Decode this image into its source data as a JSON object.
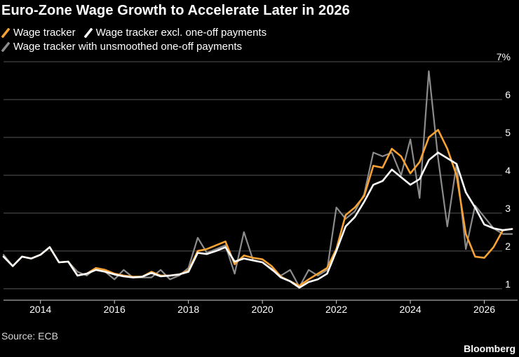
{
  "title": "Euro-Zone Wage Growth to Accelerate Later in 2026",
  "source": "Source: ECB",
  "brand": "Bloomberg",
  "chart_data": {
    "type": "line",
    "title": "Euro-Zone Wage Growth to Accelerate Later in 2026",
    "xlabel": "",
    "ylabel": "",
    "xlim": [
      2013.0,
      2026.9
    ],
    "ylim": [
      0.7,
      7.0
    ],
    "y_ticks": [
      1,
      2,
      3,
      4,
      5,
      6,
      7
    ],
    "y_tick_labels": [
      "1",
      "2",
      "3",
      "4",
      "5",
      "6",
      "7%"
    ],
    "x_ticks": [
      2014,
      2016,
      2018,
      2020,
      2022,
      2024,
      2026
    ],
    "x_tick_labels": [
      "2014",
      "2016",
      "2018",
      "2020",
      "2022",
      "2024",
      "2026"
    ],
    "grid": "horizontal",
    "legend_position": "top-left",
    "series": [
      {
        "name": "Wage tracker with unsmoothed one-off payments",
        "color": "#8c8c8c",
        "x": [
          2013.0,
          2013.25,
          2013.5,
          2013.75,
          2014.0,
          2014.25,
          2014.5,
          2014.75,
          2015.0,
          2015.25,
          2015.5,
          2015.75,
          2016.0,
          2016.25,
          2016.5,
          2016.75,
          2017.0,
          2017.25,
          2017.5,
          2017.75,
          2018.0,
          2018.25,
          2018.5,
          2018.75,
          2019.0,
          2019.25,
          2019.5,
          2019.75,
          2020.0,
          2020.25,
          2020.5,
          2020.75,
          2021.0,
          2021.25,
          2021.5,
          2021.75,
          2022.0,
          2022.25,
          2022.5,
          2022.75,
          2023.0,
          2023.25,
          2023.5,
          2023.75,
          2024.0,
          2024.25,
          2024.5,
          2024.75,
          2025.0,
          2025.25,
          2025.5,
          2025.75,
          2026.0,
          2026.25,
          2026.5,
          2026.75
        ],
        "y": [
          1.9,
          1.6,
          1.85,
          1.8,
          1.9,
          2.1,
          1.7,
          1.72,
          1.45,
          1.35,
          1.55,
          1.45,
          1.25,
          1.5,
          1.3,
          1.3,
          1.3,
          1.5,
          1.25,
          1.35,
          1.55,
          2.35,
          1.95,
          2.05,
          2.15,
          1.4,
          2.5,
          1.75,
          1.7,
          1.5,
          1.35,
          1.5,
          1.05,
          1.5,
          1.35,
          1.5,
          3.15,
          2.85,
          3.05,
          3.5,
          4.6,
          4.5,
          4.6,
          4.0,
          4.95,
          3.4,
          6.75,
          4.45,
          2.65,
          4.3,
          2.05,
          3.2,
          2.9,
          2.6,
          2.45,
          2.45
        ]
      },
      {
        "name": "Wage tracker",
        "color": "#f7a234",
        "x": [
          2013.0,
          2013.25,
          2013.5,
          2013.75,
          2014.0,
          2014.25,
          2014.5,
          2014.75,
          2015.0,
          2015.25,
          2015.5,
          2015.75,
          2016.0,
          2016.25,
          2016.5,
          2016.75,
          2017.0,
          2017.25,
          2017.5,
          2017.75,
          2018.0,
          2018.25,
          2018.5,
          2018.75,
          2019.0,
          2019.25,
          2019.5,
          2019.75,
          2020.0,
          2020.25,
          2020.5,
          2020.75,
          2021.0,
          2021.25,
          2021.5,
          2021.75,
          2022.0,
          2022.25,
          2022.5,
          2022.75,
          2023.0,
          2023.25,
          2023.5,
          2023.75,
          2024.0,
          2024.25,
          2024.5,
          2024.75,
          2025.0,
          2025.25,
          2025.5,
          2025.75,
          2026.0,
          2026.25,
          2026.5,
          2026.75
        ],
        "y": [
          1.85,
          1.6,
          1.85,
          1.8,
          1.9,
          2.1,
          1.7,
          1.72,
          1.35,
          1.4,
          1.55,
          1.5,
          1.4,
          1.35,
          1.32,
          1.32,
          1.45,
          1.35,
          1.35,
          1.38,
          1.48,
          2.0,
          2.05,
          2.15,
          2.25,
          1.65,
          1.88,
          1.82,
          1.78,
          1.6,
          1.32,
          1.2,
          1.08,
          1.25,
          1.4,
          1.55,
          2.05,
          2.95,
          3.15,
          3.45,
          4.25,
          4.2,
          4.7,
          4.5,
          4.05,
          4.35,
          5.0,
          5.2,
          4.7,
          4.0,
          2.45,
          1.85,
          1.82,
          2.1,
          2.55,
          2.58
        ]
      },
      {
        "name": "Wage tracker excl. one-off payments",
        "color": "#ffffff",
        "x": [
          2013.0,
          2013.25,
          2013.5,
          2013.75,
          2014.0,
          2014.25,
          2014.5,
          2014.75,
          2015.0,
          2015.25,
          2015.5,
          2015.75,
          2016.0,
          2016.25,
          2016.5,
          2016.75,
          2017.0,
          2017.25,
          2017.5,
          2017.75,
          2018.0,
          2018.25,
          2018.5,
          2018.75,
          2019.0,
          2019.25,
          2019.5,
          2019.75,
          2020.0,
          2020.25,
          2020.5,
          2020.75,
          2021.0,
          2021.25,
          2021.5,
          2021.75,
          2022.0,
          2022.25,
          2022.5,
          2022.75,
          2023.0,
          2023.25,
          2023.5,
          2023.75,
          2024.0,
          2024.25,
          2024.5,
          2024.75,
          2025.0,
          2025.25,
          2025.5,
          2025.75,
          2026.0,
          2026.25,
          2026.5,
          2026.75
        ],
        "y": [
          1.85,
          1.6,
          1.85,
          1.8,
          1.9,
          2.1,
          1.7,
          1.72,
          1.35,
          1.4,
          1.5,
          1.45,
          1.38,
          1.33,
          1.3,
          1.32,
          1.42,
          1.33,
          1.35,
          1.38,
          1.45,
          1.95,
          1.92,
          2.0,
          2.1,
          1.72,
          1.8,
          1.75,
          1.7,
          1.52,
          1.3,
          1.2,
          1.03,
          1.18,
          1.25,
          1.4,
          2.0,
          2.65,
          2.9,
          3.3,
          3.75,
          3.85,
          4.15,
          3.95,
          3.75,
          3.9,
          4.4,
          4.6,
          4.45,
          4.3,
          3.55,
          3.15,
          2.7,
          2.6,
          2.55,
          2.58
        ]
      }
    ]
  }
}
